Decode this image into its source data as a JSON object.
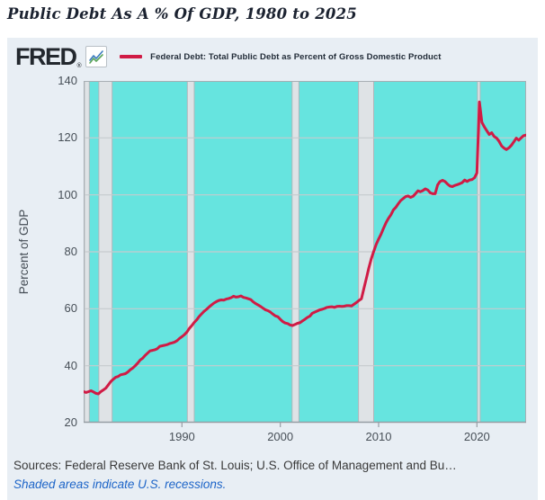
{
  "page": {
    "title": "Public Debt As A % Of GDP, 1980 to 2025"
  },
  "figure": {
    "brand": {
      "logo_text": "FRED",
      "registered_mark": "®",
      "logo_icon": "line-chart-icon"
    },
    "legend": {
      "series_label": "Federal Debt: Total Public Debt as Percent of Gross Domestic Product"
    },
    "y_axis": {
      "label": "Percent of GDP"
    },
    "footer": {
      "sources": "Sources: Federal Reserve Bank of St. Louis; U.S. Office of Management and Bu…",
      "note": "Shaded areas indicate U.S. recessions."
    }
  },
  "chart_data": {
    "type": "line",
    "title": "Federal Debt: Total Public Debt as Percent of Gross Domestic Product",
    "xlabel": "",
    "ylabel": "Percent of GDP",
    "xlim": [
      1980,
      2025
    ],
    "ylim": [
      20,
      140
    ],
    "yticks": [
      140,
      120,
      100,
      80,
      60,
      40,
      20
    ],
    "xticks": [
      1990,
      2000,
      2010,
      2020
    ],
    "grid": "horizontal",
    "legend_position": "top-left",
    "x_start": 1980.0,
    "x_step": 0.25,
    "series": [
      {
        "name": "Federal Debt: Total Public Debt as Percent of Gross Domestic Product",
        "values": [
          30.9,
          30.6,
          30.9,
          31.2,
          30.8,
          30.3,
          30.1,
          30.9,
          31.5,
          32.1,
          33.2,
          34.4,
          35.2,
          35.9,
          36.2,
          36.8,
          37.0,
          37.2,
          37.8,
          38.6,
          39.2,
          40.0,
          40.9,
          42.0,
          42.6,
          43.6,
          44.4,
          45.2,
          45.4,
          45.6,
          46.0,
          46.8,
          47.0,
          47.2,
          47.4,
          47.8,
          48.0,
          48.3,
          48.8,
          49.6,
          50.2,
          50.9,
          51.8,
          53.1,
          54.1,
          55.2,
          56.1,
          57.3,
          58.2,
          59.1,
          59.8,
          60.6,
          61.3,
          62.0,
          62.5,
          62.9,
          63.1,
          63.0,
          63.4,
          63.6,
          63.9,
          64.4,
          64.1,
          64.2,
          64.5,
          64.0,
          63.8,
          63.5,
          63.2,
          62.4,
          61.8,
          61.3,
          60.8,
          60.2,
          59.6,
          59.3,
          58.8,
          58.1,
          57.5,
          57.2,
          56.3,
          55.5,
          55.0,
          54.8,
          54.3,
          54.1,
          54.5,
          54.9,
          55.1,
          55.7,
          56.3,
          56.9,
          57.4,
          58.4,
          58.8,
          59.2,
          59.6,
          59.8,
          60.1,
          60.5,
          60.6,
          60.7,
          60.5,
          60.8,
          60.9,
          60.8,
          60.9,
          61.1,
          61.1,
          61.0,
          61.6,
          62.2,
          62.9,
          63.5,
          67.1,
          70.6,
          74.3,
          77.5,
          80.1,
          82.6,
          84.5,
          86.2,
          88.3,
          90.2,
          91.7,
          93.0,
          94.7,
          95.6,
          96.9,
          98.0,
          98.7,
          99.4,
          99.6,
          99.1,
          99.5,
          100.4,
          101.4,
          101.1,
          101.5,
          102.1,
          101.7,
          100.7,
          100.4,
          100.4,
          103.5,
          104.7,
          105.1,
          104.7,
          103.8,
          103.1,
          102.9,
          103.3,
          103.6,
          103.9,
          104.3,
          105.2,
          104.7,
          105.2,
          105.4,
          106.0,
          107.7,
          132.6,
          125.5,
          123.9,
          122.5,
          121.2,
          121.8,
          120.5,
          119.9,
          118.8,
          117.2,
          116.4,
          115.9,
          116.5,
          117.4,
          118.6,
          119.9,
          119.2,
          120.0,
          120.8,
          121.0
        ]
      }
    ],
    "recessions": [
      [
        1980.08,
        1980.58
      ],
      [
        1981.55,
        1982.9
      ],
      [
        1990.55,
        1991.25
      ],
      [
        2001.2,
        2001.9
      ],
      [
        2007.95,
        2009.5
      ],
      [
        2020.05,
        2020.33
      ]
    ],
    "colors": {
      "line": "#d01b45",
      "plot_bg": "#66e4df",
      "recession_band": "#dfe3e6",
      "recession_edge": "#b0b6ba",
      "grid": "#c6cbce",
      "plot_border": "#a8afb4",
      "figure_bg": "#e8eef4",
      "note_blue": "#1c64c8"
    }
  }
}
